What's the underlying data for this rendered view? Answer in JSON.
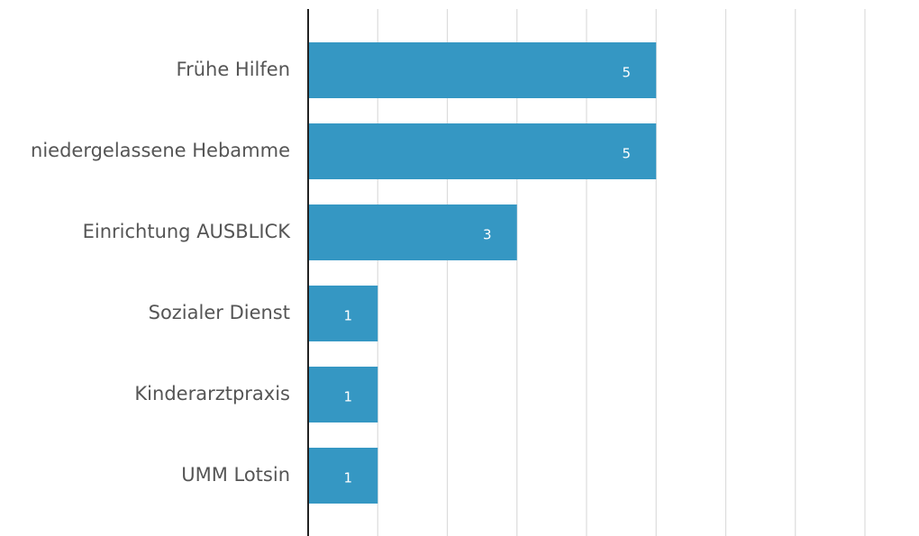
{
  "chart_data": {
    "type": "barh",
    "categories": [
      "Frühe Hilfen",
      "niedergelassene Hebamme",
      "Einrichtung AUSBLICK",
      "Sozialer Dienst",
      "Kinderarztpraxis",
      "UMM Lotsin"
    ],
    "values": [
      5,
      5,
      3,
      1,
      1,
      1
    ],
    "color": "#3597c3",
    "xlim": [
      0,
      8
    ],
    "xticks": [
      0,
      1,
      2,
      3,
      4,
      5,
      6,
      7,
      8
    ],
    "grid": true
  }
}
